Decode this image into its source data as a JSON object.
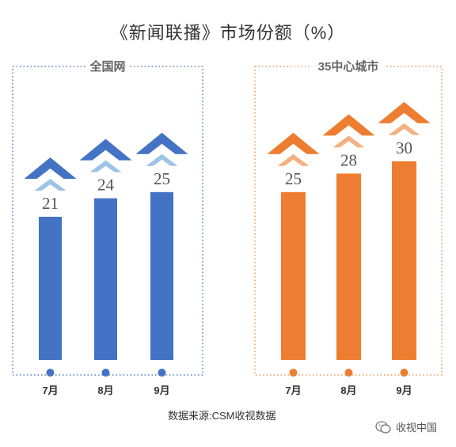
{
  "title": "《新闻联播》市场份额（%）",
  "source": "数据来源:CSM收视数据",
  "watermark": "收视中国",
  "colors": {
    "national_bar": "#4472C4",
    "national_frame": "#5B7DB8",
    "national_arrow_dark": "#4472C4",
    "national_arrow_light": "#9DC3E6",
    "city_bar": "#ED7D31",
    "city_frame": "#E69C5A",
    "city_arrow_dark": "#ED7D31",
    "city_arrow_light": "#F4B183"
  },
  "chart_data": [
    {
      "type": "bar",
      "panel_label": "全国网",
      "categories": [
        "7月",
        "8月",
        "9月"
      ],
      "values": [
        21,
        24,
        25
      ],
      "data_labels": [
        "21",
        "24",
        "25"
      ]
    },
    {
      "type": "bar",
      "panel_label": "35中心城市",
      "categories": [
        "7月",
        "8月",
        "9月"
      ],
      "values": [
        25,
        28,
        30
      ],
      "data_labels": [
        "25",
        "28",
        "30"
      ]
    }
  ]
}
